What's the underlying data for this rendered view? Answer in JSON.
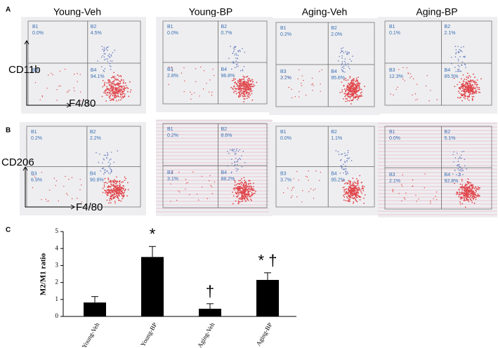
{
  "panel_labels": [
    "A",
    "B",
    "C"
  ],
  "columns": [
    "Young-Veh",
    "Young-BP",
    "Aging-Veh",
    "Aging-BP"
  ],
  "flow": [
    {
      "y_label": "CD11b",
      "x_label": "F4/80",
      "plots": [
        {
          "quadrants": [
            {
              "name": "B1",
              "value": "0.0%"
            },
            {
              "name": "B2",
              "value": "4.5%"
            },
            {
              "name": "B3",
              "value": ""
            },
            {
              "name": "B4",
              "value": "94.1%"
            }
          ]
        },
        {
          "quadrants": [
            {
              "name": "B1",
              "value": "0.0%"
            },
            {
              "name": "B2",
              "value": "0.7%"
            },
            {
              "name": "B3",
              "value": "2.8%"
            },
            {
              "name": "B4",
              "value": "96.8%"
            }
          ]
        },
        {
          "quadrants": [
            {
              "name": "B1",
              "value": "0.2%"
            },
            {
              "name": "B2",
              "value": "2.0%"
            },
            {
              "name": "B3",
              "value": "2.2%"
            },
            {
              "name": "B4",
              "value": "95.6%"
            }
          ]
        },
        {
          "quadrants": [
            {
              "name": "B1",
              "value": "0.1%"
            },
            {
              "name": "B2",
              "value": "2.1%"
            },
            {
              "name": "B3",
              "value": "12.3%"
            },
            {
              "name": "B4",
              "value": "85.5%"
            }
          ]
        }
      ]
    },
    {
      "y_label": "CD206",
      "x_label": "F4/80",
      "plots": [
        {
          "quadrants": [
            {
              "name": "B1",
              "value": "0.2%"
            },
            {
              "name": "B2",
              "value": "2.2%"
            },
            {
              "name": "B3",
              "value": "6.9%"
            },
            {
              "name": "B4",
              "value": "90.8%"
            }
          ]
        },
        {
          "quadrants": [
            {
              "name": "B1",
              "value": "0.2%"
            },
            {
              "name": "B2",
              "value": "8.6%"
            },
            {
              "name": "B3",
              "value": "3.1%"
            },
            {
              "name": "B4",
              "value": "88.2%"
            }
          ]
        },
        {
          "quadrants": [
            {
              "name": "B1",
              "value": "0.0%"
            },
            {
              "name": "B2",
              "value": "1.1%"
            },
            {
              "name": "B3",
              "value": "3.7%"
            },
            {
              "name": "B4",
              "value": "95.2%"
            }
          ]
        },
        {
          "quadrants": [
            {
              "name": "B1",
              "value": "0.0%"
            },
            {
              "name": "B2",
              "value": "5.1%"
            },
            {
              "name": "B3",
              "value": "2.1%"
            },
            {
              "name": "B4",
              "value": "92.8%"
            }
          ]
        }
      ]
    }
  ],
  "chart_data": {
    "type": "bar",
    "y_label": "M2/M1 ratio",
    "categories": [
      "Young-Veh",
      "Young-BP",
      "Aging-Veh",
      "Aging-BP"
    ],
    "values": [
      0.82,
      3.5,
      0.45,
      2.15
    ],
    "errors": [
      0.35,
      0.62,
      0.3,
      0.42
    ],
    "markers": [
      null,
      "*",
      "†",
      "* †"
    ],
    "color": "#000000",
    "ylim": [
      0,
      5
    ],
    "yticks": [
      0,
      1,
      2,
      3,
      4,
      5
    ]
  }
}
